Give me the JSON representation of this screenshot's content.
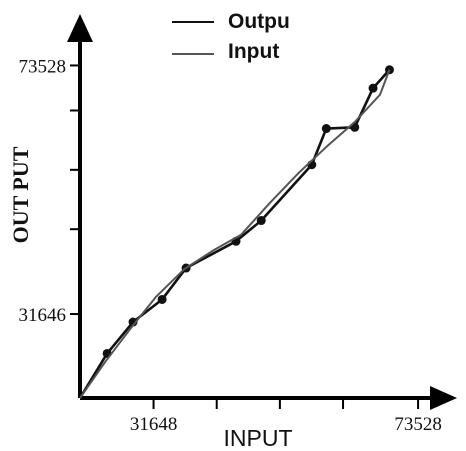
{
  "chart_data": {
    "type": "line",
    "xlabel": "INPUT",
    "ylabel": "OUT PUT",
    "xlim": [
      20000,
      77000
    ],
    "ylim": [
      17500,
      79500
    ],
    "x_ticks": [
      31648,
      41648,
      51648,
      61648,
      73528
    ],
    "x_tick_labels": [
      "31648",
      "",
      "",
      "",
      "73528"
    ],
    "y_ticks": [
      31646,
      45941,
      55941,
      65941,
      73528
    ],
    "y_tick_labels": [
      "31646",
      "",
      "",
      "",
      "73528"
    ],
    "legend_position": "top-center",
    "grid": false,
    "series": [
      {
        "name": "Outpu",
        "color": "#111111",
        "markers": true,
        "points": [
          [
            20000,
            17500
          ],
          [
            24300,
            25000
          ],
          [
            28400,
            30300
          ],
          [
            33000,
            34100
          ],
          [
            36800,
            39400
          ],
          [
            44700,
            43900
          ],
          [
            48700,
            47400
          ],
          [
            56700,
            56800
          ],
          [
            59000,
            62900
          ],
          [
            63500,
            63100
          ],
          [
            66400,
            69700
          ],
          [
            69000,
            72800
          ]
        ]
      },
      {
        "name": "Input",
        "color": "#555555",
        "markers": false,
        "points": [
          [
            20000,
            17500
          ],
          [
            24000,
            23600
          ],
          [
            28000,
            29200
          ],
          [
            32000,
            34500
          ],
          [
            36500,
            39200
          ],
          [
            41000,
            42300
          ],
          [
            45500,
            45000
          ],
          [
            50000,
            50300
          ],
          [
            54500,
            55300
          ],
          [
            59000,
            59800
          ],
          [
            63500,
            64000
          ],
          [
            67500,
            68600
          ],
          [
            69000,
            72800
          ]
        ]
      }
    ]
  }
}
